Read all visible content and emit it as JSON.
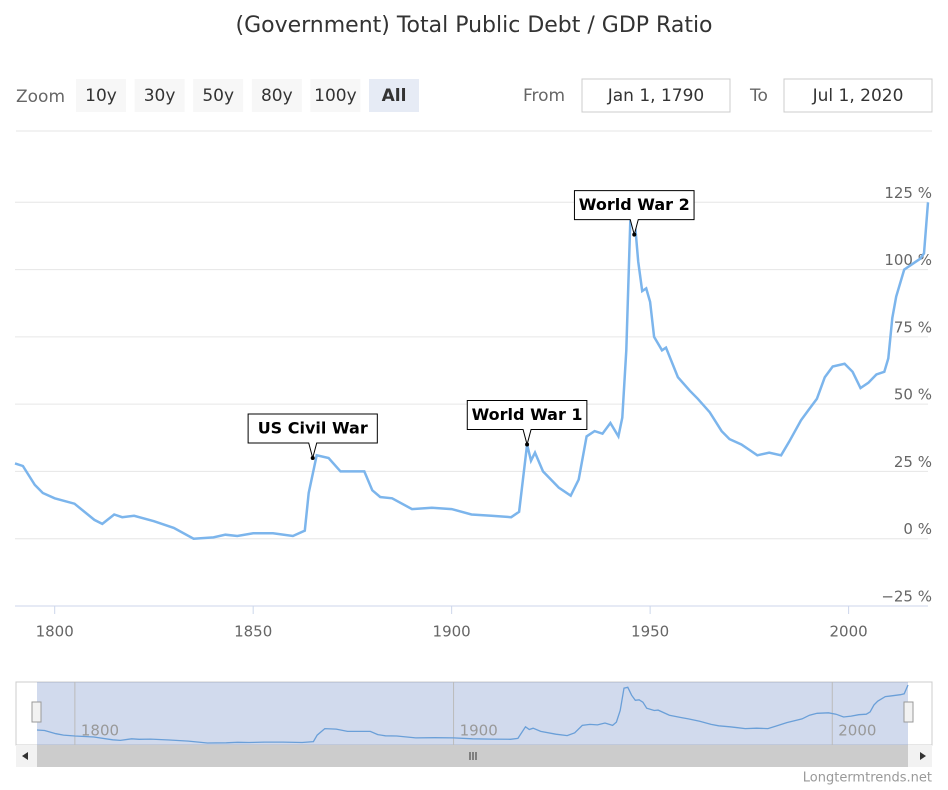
{
  "chart_data": {
    "type": "line",
    "title": "(Government) Total Public Debt / GDP Ratio",
    "range_selector": {
      "zoom_label": "Zoom",
      "buttons": [
        "10y",
        "30y",
        "50y",
        "80y",
        "100y",
        "All"
      ],
      "selected": 5,
      "from_label": "From",
      "from_value": "Jan 1, 1790",
      "to_label": "To",
      "to_value": "Jul 1, 2020"
    },
    "color": "#7cb5ec",
    "x": [
      1790,
      1792,
      1795,
      1797,
      1800,
      1805,
      1810,
      1812,
      1815,
      1817,
      1820,
      1825,
      1830,
      1835,
      1840,
      1843,
      1846,
      1850,
      1855,
      1860,
      1863,
      1864,
      1866,
      1869,
      1872,
      1875,
      1878,
      1880,
      1882,
      1885,
      1890,
      1895,
      1900,
      1905,
      1910,
      1915,
      1917,
      1919,
      1920,
      1921,
      1923,
      1927,
      1930,
      1932,
      1934,
      1936,
      1938,
      1940,
      1942,
      1943,
      1944,
      1945,
      1946,
      1947,
      1948,
      1949,
      1950,
      1951,
      1953,
      1954,
      1957,
      1960,
      1962,
      1965,
      1968,
      1970,
      1973,
      1975,
      1977,
      1980,
      1983,
      1985,
      1988,
      1990,
      1992,
      1994,
      1996,
      1999,
      2001,
      2003,
      2005,
      2007,
      2009,
      2010,
      2011,
      2012,
      2014,
      2016,
      2018,
      2019,
      2020
    ],
    "values": [
      28,
      27,
      20,
      17,
      15,
      13,
      7,
      5.5,
      9,
      8,
      8.5,
      6.5,
      4,
      0,
      0.5,
      1.5,
      1,
      2,
      2,
      1,
      3,
      17,
      31,
      30,
      25,
      25,
      25,
      18,
      15.5,
      15,
      11,
      11.5,
      11,
      9,
      8.5,
      8,
      10,
      35,
      29,
      32,
      25,
      19,
      16,
      22,
      38,
      40,
      39,
      43,
      38,
      45,
      70,
      118,
      120,
      103,
      92,
      93,
      88,
      75,
      70,
      71,
      60,
      55,
      52,
      47,
      40,
      37,
      35,
      33,
      31,
      32,
      31,
      36,
      44,
      48,
      52,
      60,
      64,
      65,
      62,
      56,
      58,
      61,
      62,
      67,
      82,
      90,
      100,
      102,
      104,
      106,
      125
    ],
    "xlim": [
      1790,
      2020
    ],
    "xticks": [
      1800,
      1850,
      1900,
      1950,
      2000
    ],
    "ylim": [
      -25,
      150
    ],
    "yticks": [
      {
        "value": -25,
        "label": "−25 %"
      },
      {
        "value": 0,
        "label": "0 %"
      },
      {
        "value": 25,
        "label": "25 %"
      },
      {
        "value": 50,
        "label": "50 %"
      },
      {
        "value": 75,
        "label": "75 %"
      },
      {
        "value": 100,
        "label": "100 %"
      },
      {
        "value": 125,
        "label": "125 %"
      }
    ],
    "grid": true,
    "annotations": [
      {
        "text": "US Civil War",
        "x": 1865,
        "y": 30
      },
      {
        "text": "World War 1",
        "x": 1919,
        "y": 35
      },
      {
        "text": "World War 2",
        "x": 1946,
        "y": 113
      }
    ],
    "navigator": {
      "xticks": [
        1800,
        1900,
        2000
      ]
    },
    "credits": "Longtermtrends.net"
  }
}
